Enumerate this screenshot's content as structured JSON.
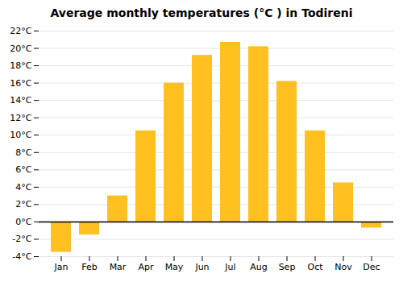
{
  "chart_data": {
    "type": "bar",
    "title": "Average monthly temperatures (°C ) in Todireni",
    "categories": [
      "Jan",
      "Feb",
      "Mar",
      "Apr",
      "May",
      "Jun",
      "Jul",
      "Aug",
      "Sep",
      "Oct",
      "Nov",
      "Dec"
    ],
    "values": [
      -3.5,
      -1.5,
      3.0,
      10.5,
      16.0,
      19.2,
      20.7,
      20.2,
      16.2,
      10.5,
      4.5,
      -0.7
    ],
    "color": "#FFC020",
    "ylim": [
      -4,
      22
    ],
    "yticks": [
      {
        "value": -4,
        "label": "-4°C"
      },
      {
        "value": -2,
        "label": "-2°C"
      },
      {
        "value": 0,
        "label": "0°C"
      },
      {
        "value": 2,
        "label": "2°C"
      },
      {
        "value": 4,
        "label": "4°C"
      },
      {
        "value": 6,
        "label": "6°C"
      },
      {
        "value": 8,
        "label": "8°C"
      },
      {
        "value": 10,
        "label": "10°C"
      },
      {
        "value": 12,
        "label": "12°C"
      },
      {
        "value": 14,
        "label": "14°C"
      },
      {
        "value": 16,
        "label": "16°C"
      },
      {
        "value": 18,
        "label": "18°C"
      },
      {
        "value": 20,
        "label": "20°C"
      },
      {
        "value": 22,
        "label": "22°C"
      }
    ],
    "grid": true
  }
}
